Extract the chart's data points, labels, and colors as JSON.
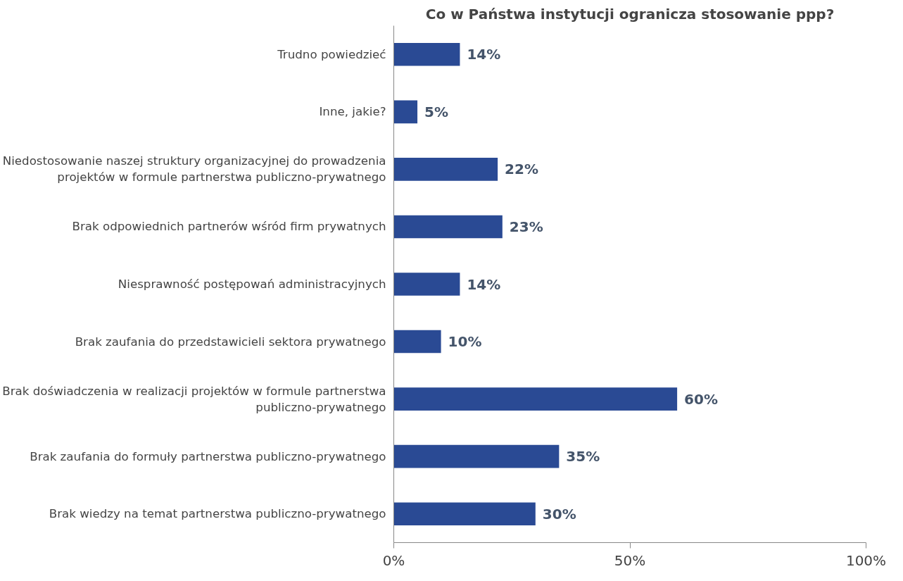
{
  "chart_data": {
    "type": "bar",
    "orientation": "horizontal",
    "title": "Co w Państwa instytucji ogranicza stosowanie ppp?",
    "categories": [
      "Trudno powiedzieć",
      "Inne, jakie?",
      "Niedostosowanie naszej struktury organizacyjnej do prowadzenia\nprojektów w formule partnerstwa publiczno-prywatnego",
      "Brak odpowiednich partnerów wśród firm prywatnych",
      "Niesprawność postępowań administracyjnych",
      "Brak zaufania do przedstawicieli sektora prywatnego",
      "Brak doświadczenia w realizacji projektów w formule partnerstwa\npubliczno-prywatnego",
      "Brak zaufania do formuły partnerstwa publiczno-prywatnego",
      "Brak wiedzy na temat partnerstwa publiczno-prywatnego"
    ],
    "values": [
      14,
      5,
      22,
      23,
      14,
      10,
      60,
      35,
      30
    ],
    "value_labels": [
      "14%",
      "5%",
      "22%",
      "23%",
      "14%",
      "10%",
      "60%",
      "35%",
      "30%"
    ],
    "color": "#2a4a94",
    "xlim": [
      0,
      100
    ],
    "xticks": [
      {
        "value": 0,
        "label": "0%"
      },
      {
        "value": 50,
        "label": "50%"
      },
      {
        "value": 100,
        "label": "100%"
      }
    ],
    "grid": false
  }
}
